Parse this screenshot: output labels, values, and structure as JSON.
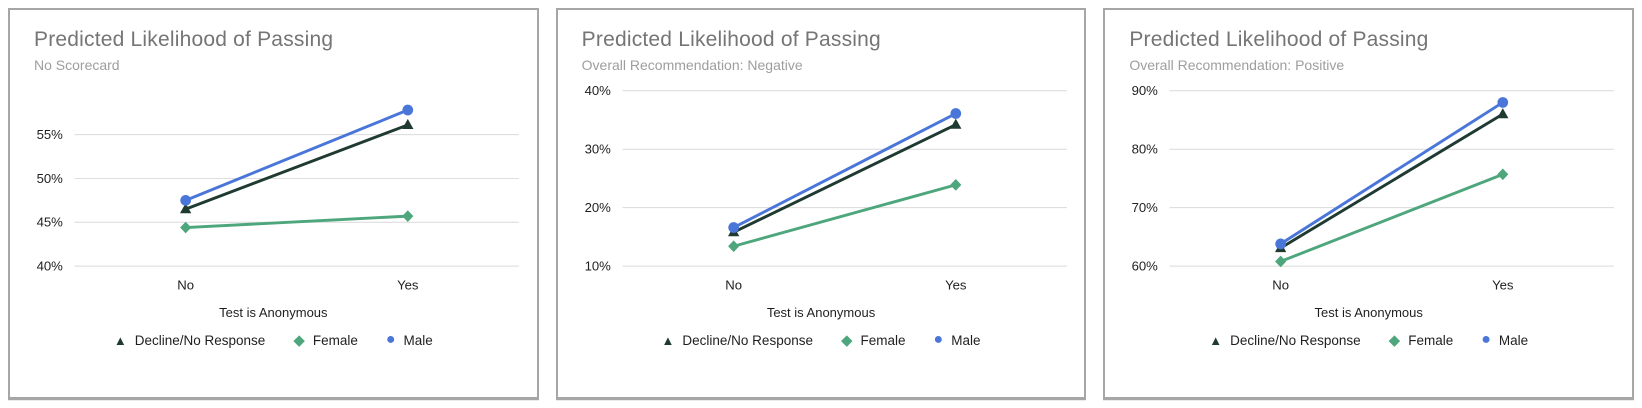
{
  "page": {
    "background_color": "#ffffff",
    "card_border_color": "#a6a6a6",
    "gridline_color": "#d9d9d9",
    "tick_label_color": "#1f1f1f",
    "title_color": "#757575",
    "subtitle_color": "#9e9e9e"
  },
  "chart_data": [
    {
      "type": "line",
      "title": "Predicted Likelihood of Passing",
      "subtitle": "No Scorecard",
      "xlabel": "Test is Anonymous",
      "categories": [
        "No",
        "Yes"
      ],
      "ylim": [
        40,
        60
      ],
      "ytick_values": [
        40,
        45,
        50,
        55
      ],
      "ytick_labels": [
        "40%",
        "45%",
        "50%",
        "55%"
      ],
      "grid": true,
      "legend_position": "bottom",
      "series": [
        {
          "name": "Decline/No Response",
          "marker": "triangle",
          "color": "#1f3a31",
          "values": [
            46.5,
            56.1
          ]
        },
        {
          "name": "Female",
          "marker": "diamond",
          "color": "#4ea67c",
          "values": [
            44.4,
            45.7
          ]
        },
        {
          "name": "Male",
          "marker": "circle",
          "color": "#4a76d9",
          "values": [
            47.5,
            57.8
          ]
        }
      ]
    },
    {
      "type": "line",
      "title": "Predicted Likelihood of Passing",
      "subtitle": "Overall Recommendation: Negative",
      "xlabel": "Test is Anonymous",
      "categories": [
        "No",
        "Yes"
      ],
      "ylim": [
        10,
        40
      ],
      "ytick_values": [
        10,
        20,
        30,
        40
      ],
      "ytick_labels": [
        "10%",
        "20%",
        "30%",
        "40%"
      ],
      "grid": true,
      "legend_position": "bottom",
      "series": [
        {
          "name": "Decline/No Response",
          "marker": "triangle",
          "color": "#1f3a31",
          "values": [
            15.8,
            34.2
          ]
        },
        {
          "name": "Female",
          "marker": "diamond",
          "color": "#4ea67c",
          "values": [
            13.4,
            23.9
          ]
        },
        {
          "name": "Male",
          "marker": "circle",
          "color": "#4a76d9",
          "values": [
            16.6,
            36.1
          ]
        }
      ]
    },
    {
      "type": "line",
      "title": "Predicted Likelihood of Passing",
      "subtitle": "Overall Recommendation: Positive",
      "xlabel": "Test is Anonymous",
      "categories": [
        "No",
        "Yes"
      ],
      "ylim": [
        60,
        90
      ],
      "ytick_values": [
        60,
        70,
        80,
        90
      ],
      "ytick_labels": [
        "60%",
        "70%",
        "80%",
        "90%"
      ],
      "grid": true,
      "legend_position": "bottom",
      "series": [
        {
          "name": "Decline/No Response",
          "marker": "triangle",
          "color": "#1f3a31",
          "values": [
            63.1,
            86.0
          ]
        },
        {
          "name": "Female",
          "marker": "diamond",
          "color": "#4ea67c",
          "values": [
            60.8,
            75.7
          ]
        },
        {
          "name": "Male",
          "marker": "circle",
          "color": "#4a76d9",
          "values": [
            63.8,
            88.0
          ]
        }
      ]
    }
  ]
}
